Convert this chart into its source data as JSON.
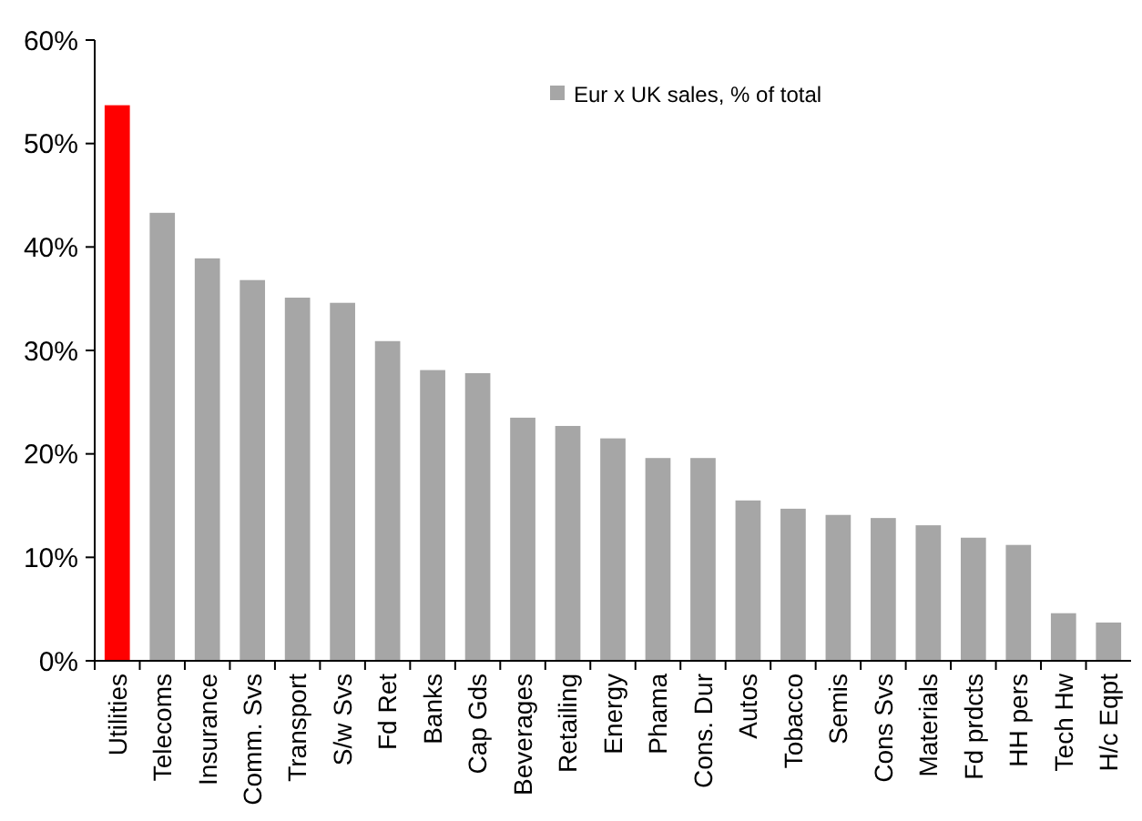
{
  "chart_data": {
    "type": "bar",
    "categories": [
      "Utilities",
      "Telecoms",
      "Insurance",
      "Comm. Svs",
      "Transport",
      "S/w Svs",
      "Fd Ret",
      "Banks",
      "Cap Gds",
      "Beverages",
      "Retailing",
      "Energy",
      "Phama",
      "Cons. Dur",
      "Autos",
      "Tobacco",
      "Semis",
      "Cons Svs",
      "Materials",
      "Fd prdcts",
      "HH pers",
      "Tech Hw",
      "H/c Eqpt"
    ],
    "series": [
      {
        "name": "Eur x UK sales, % of total",
        "color": "#a6a6a6",
        "colors": [
          "#ff0000",
          "#a6a6a6",
          "#a6a6a6",
          "#a6a6a6",
          "#a6a6a6",
          "#a6a6a6",
          "#a6a6a6",
          "#a6a6a6",
          "#a6a6a6",
          "#a6a6a6",
          "#a6a6a6",
          "#a6a6a6",
          "#a6a6a6",
          "#a6a6a6",
          "#a6a6a6",
          "#a6a6a6",
          "#a6a6a6",
          "#a6a6a6",
          "#a6a6a6",
          "#a6a6a6",
          "#a6a6a6",
          "#a6a6a6",
          "#a6a6a6"
        ],
        "values": [
          53.7,
          43.3,
          38.9,
          36.8,
          35.1,
          34.6,
          30.9,
          28.1,
          27.8,
          23.5,
          22.7,
          21.5,
          19.6,
          19.6,
          15.5,
          14.7,
          14.1,
          13.8,
          13.1,
          11.9,
          11.2,
          4.6,
          3.7
        ]
      }
    ],
    "ylim": [
      0,
      60
    ],
    "yticks": [
      {
        "value": 0,
        "label": "0%"
      },
      {
        "value": 10,
        "label": "10%"
      },
      {
        "value": 20,
        "label": "20%"
      },
      {
        "value": 30,
        "label": "30%"
      },
      {
        "value": 40,
        "label": "40%"
      },
      {
        "value": 50,
        "label": "50%"
      },
      {
        "value": 60,
        "label": "60%"
      }
    ],
    "legend": "top right",
    "grid": false
  }
}
